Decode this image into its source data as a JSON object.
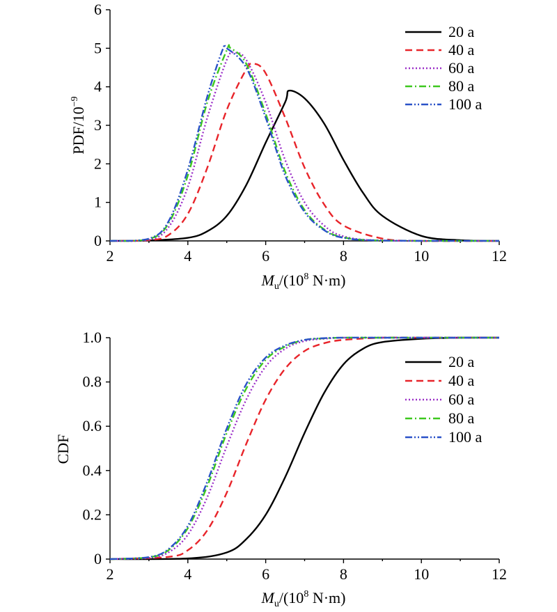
{
  "chart_data": [
    {
      "type": "line",
      "xlabel_main": "M",
      "xlabel_sub": "u",
      "xlabel_rest": "/(10",
      "xlabel_sup": "8",
      "xlabel_end": " N·m)",
      "ylabel_main": "PDF/10",
      "ylabel_sup": "−9",
      "xlim": [
        2,
        12
      ],
      "ylim": [
        0,
        6
      ],
      "xticks": [
        "2",
        "4",
        "6",
        "8",
        "10",
        "12"
      ],
      "yticks": [
        "0",
        "1",
        "2",
        "3",
        "4",
        "5",
        "6"
      ],
      "legend_position": "top-right",
      "series": [
        {
          "name": "20 a",
          "color": "#000000",
          "dash": "solid",
          "mean": 6.8,
          "sd": 1.05,
          "x": [
            2,
            3,
            4,
            4.5,
            5,
            5.5,
            6,
            6.5,
            6.6,
            7,
            7.5,
            8,
            8.5,
            9,
            10,
            11,
            12
          ],
          "y": [
            0,
            0.01,
            0.08,
            0.25,
            0.65,
            1.45,
            2.55,
            3.6,
            3.9,
            3.7,
            3.05,
            2.1,
            1.25,
            0.65,
            0.13,
            0.02,
            0
          ]
        },
        {
          "name": "40 a",
          "color": "#e8242a",
          "dash": "dashed",
          "mean": 5.8,
          "sd": 0.9,
          "x": [
            2,
            3,
            3.5,
            4,
            4.5,
            5,
            5.5,
            5.7,
            6,
            6.5,
            7,
            7.5,
            8,
            9,
            10,
            12
          ],
          "y": [
            0,
            0.02,
            0.15,
            0.7,
            1.9,
            3.4,
            4.45,
            4.6,
            4.35,
            3.2,
            1.9,
            0.95,
            0.4,
            0.06,
            0,
            0
          ]
        },
        {
          "name": "60 a",
          "color": "#9b30c8",
          "dash": "dotted",
          "mean": 5.4,
          "sd": 0.82,
          "x": [
            2,
            3,
            3.5,
            4,
            4.5,
            5,
            5.2,
            5.5,
            6,
            6.5,
            7,
            7.5,
            8,
            9,
            12
          ],
          "y": [
            0,
            0.03,
            0.35,
            1.4,
            3.2,
            4.7,
            4.88,
            4.7,
            3.6,
            2.1,
            1.0,
            0.4,
            0.12,
            0.01,
            0
          ]
        },
        {
          "name": "80 a",
          "color": "#3cc81e",
          "dash": "dashdot",
          "mean": 5.3,
          "sd": 0.8,
          "x": [
            2,
            3,
            3.5,
            4,
            4.5,
            5,
            5.1,
            5.5,
            6,
            6.5,
            7,
            7.5,
            8,
            9,
            12
          ],
          "y": [
            0,
            0.05,
            0.45,
            1.7,
            3.6,
            4.95,
            5.0,
            4.6,
            3.3,
            1.8,
            0.8,
            0.3,
            0.09,
            0.01,
            0
          ]
        },
        {
          "name": "100 a",
          "color": "#2a52c8",
          "dash": "dashdotdot",
          "mean": 5.25,
          "sd": 0.8,
          "x": [
            2,
            3,
            3.5,
            4,
            4.5,
            4.9,
            5,
            5.5,
            6,
            6.5,
            7,
            7.5,
            8,
            9,
            12
          ],
          "y": [
            0,
            0.06,
            0.5,
            1.85,
            3.75,
            4.98,
            5.0,
            4.5,
            3.2,
            1.7,
            0.75,
            0.28,
            0.08,
            0.01,
            0
          ]
        }
      ]
    },
    {
      "type": "line",
      "xlabel_main": "M",
      "xlabel_sub": "u",
      "xlabel_rest": "/(10",
      "xlabel_sup": "8",
      "xlabel_end": " N·m)",
      "ylabel_main": "CDF",
      "xlim": [
        2,
        12
      ],
      "ylim": [
        0,
        1.0
      ],
      "xticks": [
        "2",
        "4",
        "6",
        "8",
        "10",
        "12"
      ],
      "yticks": [
        "0",
        "0.2",
        "0.4",
        "0.6",
        "0.8",
        "1.0"
      ],
      "legend_position": "right",
      "series": [
        {
          "name": "20 a",
          "color": "#000000",
          "dash": "solid",
          "x": [
            2,
            4,
            5,
            5.5,
            6,
            6.5,
            7,
            7.5,
            8,
            8.5,
            9,
            10,
            11,
            12
          ],
          "y": [
            0,
            0.003,
            0.03,
            0.09,
            0.2,
            0.37,
            0.57,
            0.75,
            0.88,
            0.95,
            0.98,
            0.995,
            1.0,
            1.0
          ]
        },
        {
          "name": "40 a",
          "color": "#e8242a",
          "dash": "dashed",
          "x": [
            2,
            3.5,
            4,
            4.5,
            5,
            5.5,
            6,
            6.5,
            7,
            7.5,
            8,
            9,
            10,
            12
          ],
          "y": [
            0,
            0.01,
            0.04,
            0.13,
            0.3,
            0.52,
            0.72,
            0.86,
            0.94,
            0.975,
            0.99,
            1.0,
            1.0,
            1.0
          ]
        },
        {
          "name": "60 a",
          "color": "#9b30c8",
          "dash": "dotted",
          "x": [
            2,
            3,
            3.5,
            4,
            4.5,
            5,
            5.5,
            6,
            6.5,
            7,
            7.5,
            8,
            9,
            12
          ],
          "y": [
            0,
            0.005,
            0.03,
            0.11,
            0.28,
            0.51,
            0.72,
            0.87,
            0.95,
            0.985,
            0.995,
            1.0,
            1.0,
            1.0
          ]
        },
        {
          "name": "80 a",
          "color": "#3cc81e",
          "dash": "dashdot",
          "x": [
            2,
            3,
            3.5,
            4,
            4.5,
            5,
            5.5,
            6,
            6.5,
            7,
            7.5,
            8,
            9,
            12
          ],
          "y": [
            0,
            0.008,
            0.04,
            0.14,
            0.33,
            0.57,
            0.77,
            0.9,
            0.96,
            0.99,
            0.997,
            1.0,
            1.0,
            1.0
          ]
        },
        {
          "name": "100 a",
          "color": "#2a52c8",
          "dash": "dashdotdot",
          "x": [
            2,
            3,
            3.5,
            4,
            4.5,
            5,
            5.5,
            6,
            6.5,
            7,
            7.5,
            8,
            9,
            12
          ],
          "y": [
            0,
            0.009,
            0.045,
            0.15,
            0.35,
            0.59,
            0.79,
            0.91,
            0.965,
            0.99,
            0.998,
            1.0,
            1.0,
            1.0
          ]
        }
      ]
    }
  ]
}
